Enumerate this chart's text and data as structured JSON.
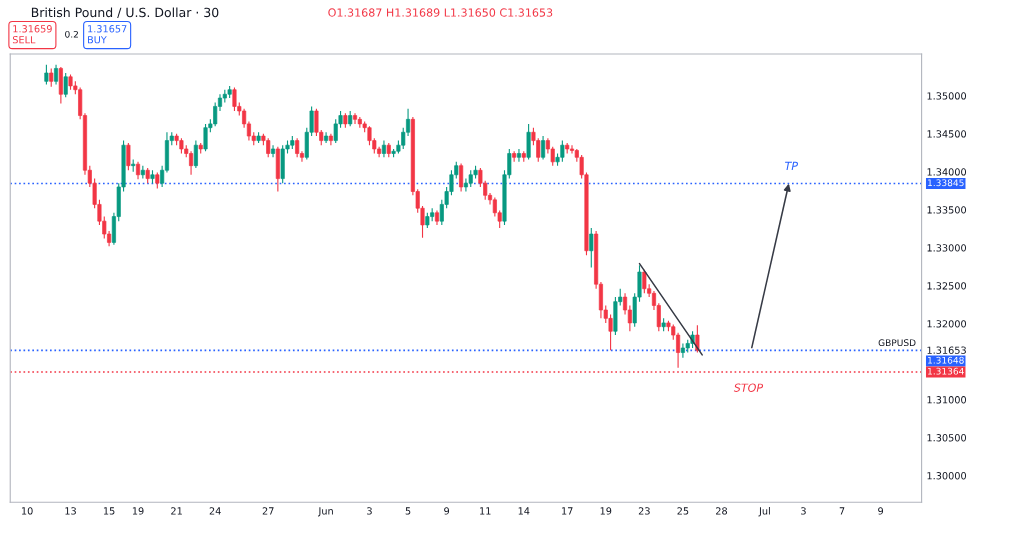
{
  "chart_data": {
    "type": "candlestick",
    "title": "British Pound / U.S. Dollar · 30",
    "subtitle": "O1.31687 H1.31689 L1.31650 C1.31653",
    "annotations": [
      "1.31659",
      "SELL",
      "0.2",
      "1.31657",
      "BUY",
      {
        "text": "TP",
        "y": 1.33845
      },
      {
        "text": "STOP",
        "y": 1.31364
      },
      "GBPUSD"
    ],
    "categories": [
      null,
      null,
      null,
      "10",
      null,
      null,
      null,
      null,
      null,
      null,
      null,
      null,
      "13",
      null,
      null,
      null,
      null,
      null,
      null,
      null,
      "15",
      null,
      null,
      null,
      null,
      null,
      "19",
      null,
      null,
      null,
      null,
      null,
      null,
      null,
      "21",
      null,
      null,
      null,
      null,
      null,
      null,
      null,
      "24",
      null,
      null,
      null,
      null,
      null,
      null,
      null,
      null,
      null,
      null,
      "27",
      null,
      null,
      null,
      null,
      null,
      null,
      null,
      null,
      null,
      null,
      null,
      "Jun",
      null,
      null,
      null,
      null,
      null,
      null,
      null,
      null,
      "3",
      null,
      null,
      null,
      null,
      null,
      null,
      null,
      "5",
      null,
      null,
      null,
      null,
      null,
      null,
      null,
      "9",
      null,
      null,
      null,
      null,
      null,
      null,
      null,
      "11",
      null,
      null,
      null,
      null,
      null,
      null,
      null,
      "14",
      null,
      null,
      null,
      null,
      null,
      null,
      null,
      null,
      "17",
      null,
      null,
      null,
      null,
      null,
      null,
      null,
      "19",
      null,
      null,
      null,
      null,
      null,
      null,
      null,
      "23",
      null,
      null,
      null,
      null,
      null,
      null,
      null,
      "25",
      null,
      null,
      null,
      null,
      null,
      null,
      null,
      "28",
      null,
      null,
      null,
      null,
      null,
      null,
      null,
      null,
      "Jul",
      null,
      null,
      null,
      null,
      null,
      null,
      null,
      "3",
      null,
      null,
      null,
      null,
      null,
      null,
      null,
      "7",
      null,
      null,
      null,
      null,
      null,
      null,
      null,
      "9",
      null,
      null,
      null,
      null,
      null,
      null,
      null,
      null
    ],
    "ohlc": [
      null,
      null,
      null,
      null,
      null,
      null,
      null,
      [
        1.3519,
        1.3541,
        1.3515,
        1.353
      ],
      [
        1.353,
        1.3536,
        1.3512,
        1.3519
      ],
      [
        1.3519,
        1.3541,
        1.3515,
        1.3536
      ],
      [
        1.3536,
        1.3538,
        1.349,
        1.3502
      ],
      [
        1.3502,
        1.353,
        1.3498,
        1.3525
      ],
      [
        1.3525,
        1.3528,
        1.3508,
        1.3513
      ],
      [
        1.3513,
        1.3519,
        1.3502,
        1.3508
      ],
      [
        1.3508,
        1.3511,
        1.3469,
        1.3474
      ],
      [
        1.3474,
        1.3477,
        1.3396,
        1.3402
      ],
      [
        1.3402,
        1.3408,
        1.338,
        1.3385
      ],
      [
        1.3385,
        1.3391,
        1.3352,
        1.3357
      ],
      [
        1.3357,
        1.3363,
        1.333,
        1.3335
      ],
      [
        1.3335,
        1.3341,
        1.3312,
        1.3318
      ],
      [
        1.3318,
        1.3322,
        1.3302,
        1.3307
      ],
      [
        1.3307,
        1.3346,
        1.3304,
        1.3341
      ],
      [
        1.3341,
        1.3385,
        1.3335,
        1.338
      ],
      [
        1.338,
        1.3441,
        1.3374,
        1.3435
      ],
      [
        1.3435,
        1.3438,
        1.3402,
        1.3408
      ],
      [
        1.3408,
        1.3416,
        1.34,
        1.341
      ],
      [
        1.341,
        1.3413,
        1.339,
        1.3396
      ],
      [
        1.3396,
        1.3408,
        1.3391,
        1.3402
      ],
      [
        1.3402,
        1.3405,
        1.3385,
        1.3391
      ],
      [
        1.3391,
        1.3402,
        1.3385,
        1.3396
      ],
      [
        1.3396,
        1.3399,
        1.3378,
        1.3385
      ],
      [
        1.3385,
        1.3408,
        1.338,
        1.3402
      ],
      [
        1.3402,
        1.3452,
        1.3399,
        1.3441
      ],
      [
        1.3441,
        1.3452,
        1.3435,
        1.3447
      ],
      [
        1.3447,
        1.345,
        1.3435,
        1.3441
      ],
      [
        1.3441,
        1.3444,
        1.3424,
        1.343
      ],
      [
        1.343,
        1.3435,
        1.3419,
        1.3424
      ],
      [
        1.3424,
        1.3427,
        1.3396,
        1.3408
      ],
      [
        1.3408,
        1.3441,
        1.3405,
        1.3435
      ],
      [
        1.3435,
        1.3438,
        1.3424,
        1.343
      ],
      [
        1.343,
        1.3463,
        1.3427,
        1.3458
      ],
      [
        1.3458,
        1.3469,
        1.3452,
        1.3463
      ],
      [
        1.3463,
        1.3491,
        1.346,
        1.3486
      ],
      [
        1.3486,
        1.3502,
        1.348,
        1.3497
      ],
      [
        1.3497,
        1.3508,
        1.3491,
        1.3502
      ],
      [
        1.3502,
        1.3513,
        1.3497,
        1.3508
      ],
      [
        1.3508,
        1.3511,
        1.348,
        1.3486
      ],
      [
        1.3486,
        1.3491,
        1.3474,
        1.348
      ],
      [
        1.348,
        1.3483,
        1.3458,
        1.3463
      ],
      [
        1.3463,
        1.3466,
        1.3441,
        1.3447
      ],
      [
        1.3447,
        1.3452,
        1.3435,
        1.3441
      ],
      [
        1.3441,
        1.3452,
        1.3438,
        1.3447
      ],
      [
        1.3447,
        1.345,
        1.3435,
        1.3441
      ],
      [
        1.3441,
        1.3444,
        1.3419,
        1.3424
      ],
      [
        1.3424,
        1.3435,
        1.3419,
        1.343
      ],
      [
        1.343,
        1.3433,
        1.3374,
        1.3391
      ],
      [
        1.3391,
        1.3435,
        1.3385,
        1.343
      ],
      [
        1.343,
        1.3441,
        1.3424,
        1.3435
      ],
      [
        1.3435,
        1.3447,
        1.343,
        1.3441
      ],
      [
        1.3441,
        1.3444,
        1.3419,
        1.3424
      ],
      [
        1.3424,
        1.3427,
        1.3413,
        1.3419
      ],
      [
        1.3419,
        1.3458,
        1.3416,
        1.3452
      ],
      [
        1.3452,
        1.3486,
        1.3447,
        1.348
      ],
      [
        1.348,
        1.3483,
        1.3447,
        1.3452
      ],
      [
        1.3452,
        1.3455,
        1.3435,
        1.3441
      ],
      [
        1.3441,
        1.3452,
        1.3438,
        1.3447
      ],
      [
        1.3447,
        1.345,
        1.3435,
        1.3441
      ],
      [
        1.3441,
        1.3469,
        1.3438,
        1.3463
      ],
      [
        1.3463,
        1.348,
        1.3458,
        1.3474
      ],
      [
        1.3474,
        1.3477,
        1.3458,
        1.3463
      ],
      [
        1.3463,
        1.348,
        1.346,
        1.3474
      ],
      [
        1.3474,
        1.3477,
        1.3463,
        1.3469
      ],
      [
        1.3469,
        1.3472,
        1.3458,
        1.3463
      ],
      [
        1.3463,
        1.3466,
        1.3452,
        1.3458
      ],
      [
        1.3458,
        1.346,
        1.3435,
        1.3441
      ],
      [
        1.3441,
        1.3444,
        1.3424,
        1.343
      ],
      [
        1.343,
        1.3433,
        1.3419,
        1.3424
      ],
      [
        1.3424,
        1.3441,
        1.3419,
        1.3435
      ],
      [
        1.3435,
        1.3438,
        1.3419,
        1.3424
      ],
      [
        1.3424,
        1.343,
        1.3419,
        1.3427
      ],
      [
        1.3427,
        1.3441,
        1.3424,
        1.3435
      ],
      [
        1.3435,
        1.3458,
        1.343,
        1.3452
      ],
      [
        1.3452,
        1.3483,
        1.3447,
        1.3469
      ],
      [
        1.3469,
        1.3472,
        1.3369,
        1.3374
      ],
      [
        1.3374,
        1.3377,
        1.3346,
        1.3352
      ],
      [
        1.3352,
        1.3355,
        1.3313,
        1.333
      ],
      [
        1.333,
        1.3346,
        1.3326,
        1.3341
      ],
      [
        1.3341,
        1.3352,
        1.3335,
        1.3346
      ],
      [
        1.3346,
        1.3349,
        1.333,
        1.3335
      ],
      [
        1.3335,
        1.3363,
        1.333,
        1.3357
      ],
      [
        1.3357,
        1.338,
        1.3352,
        1.3374
      ],
      [
        1.3374,
        1.3402,
        1.3369,
        1.3396
      ],
      [
        1.3396,
        1.3413,
        1.3391,
        1.3408
      ],
      [
        1.3408,
        1.3411,
        1.3374,
        1.338
      ],
      [
        1.338,
        1.3391,
        1.3374,
        1.3385
      ],
      [
        1.3385,
        1.3402,
        1.338,
        1.3396
      ],
      [
        1.3396,
        1.3408,
        1.3391,
        1.3402
      ],
      [
        1.3402,
        1.3405,
        1.338,
        1.3385
      ],
      [
        1.3385,
        1.3388,
        1.3363,
        1.3369
      ],
      [
        1.3369,
        1.3372,
        1.3357,
        1.3363
      ],
      [
        1.3363,
        1.3366,
        1.3341,
        1.3346
      ],
      [
        1.3346,
        1.3349,
        1.3326,
        1.3335
      ],
      [
        1.3335,
        1.3402,
        1.333,
        1.3396
      ],
      [
        1.3396,
        1.343,
        1.3391,
        1.3424
      ],
      [
        1.3424,
        1.3427,
        1.3413,
        1.3419
      ],
      [
        1.3419,
        1.343,
        1.3413,
        1.3424
      ],
      [
        1.3424,
        1.3427,
        1.3413,
        1.3419
      ],
      [
        1.3419,
        1.3463,
        1.3416,
        1.3452
      ],
      [
        1.3452,
        1.3458,
        1.3435,
        1.3441
      ],
      [
        1.3441,
        1.3444,
        1.3413,
        1.3419
      ],
      [
        1.3419,
        1.3447,
        1.3416,
        1.3441
      ],
      [
        1.3441,
        1.3444,
        1.3424,
        1.343
      ],
      [
        1.343,
        1.3433,
        1.3408,
        1.3413
      ],
      [
        1.3413,
        1.3424,
        1.3408,
        1.3419
      ],
      [
        1.3419,
        1.3441,
        1.3413,
        1.3435
      ],
      [
        1.3435,
        1.3438,
        1.3424,
        1.343
      ],
      [
        1.343,
        1.3435,
        1.3424,
        1.3428
      ],
      [
        1.3428,
        1.343,
        1.3413,
        1.3419
      ],
      [
        1.3419,
        1.3422,
        1.3391,
        1.3396
      ],
      [
        1.3396,
        1.3399,
        1.329,
        1.3296
      ],
      [
        1.3296,
        1.3326,
        1.3274,
        1.3318
      ],
      [
        1.3318,
        1.3322,
        1.3246,
        1.3252
      ],
      [
        1.3252,
        1.3255,
        1.3207,
        1.3218
      ],
      [
        1.3218,
        1.3224,
        1.3201,
        1.3207
      ],
      [
        1.3207,
        1.3212,
        1.3165,
        1.319
      ],
      [
        1.319,
        1.3235,
        1.3185,
        1.3229
      ],
      [
        1.3229,
        1.3246,
        1.3224,
        1.3235
      ],
      [
        1.3235,
        1.324,
        1.3212,
        1.3218
      ],
      [
        1.3218,
        1.3224,
        1.319,
        1.3201
      ],
      [
        1.3201,
        1.324,
        1.3196,
        1.3235
      ],
      [
        1.3235,
        1.3277,
        1.3229,
        1.3268
      ],
      [
        1.3268,
        1.3271,
        1.324,
        1.3246
      ],
      [
        1.3246,
        1.3252,
        1.3235,
        1.324
      ],
      [
        1.324,
        1.3243,
        1.3218,
        1.3224
      ],
      [
        1.3224,
        1.3227,
        1.319,
        1.3196
      ],
      [
        1.3196,
        1.3207,
        1.319,
        1.3201
      ],
      [
        1.3201,
        1.3204,
        1.319,
        1.3196
      ],
      [
        1.3196,
        1.3199,
        1.3179,
        1.3185
      ],
      [
        1.3185,
        1.3188,
        1.3142,
        1.3162
      ],
      [
        1.3162,
        1.3174,
        1.3155,
        1.3168
      ],
      [
        1.3168,
        1.3179,
        1.3162,
        1.3174
      ],
      [
        1.3174,
        1.319,
        1.3168,
        1.3185
      ],
      [
        1.3185,
        1.3198,
        1.3162,
        1.3165
      ],
      null,
      null,
      null,
      null,
      null,
      null,
      null,
      null,
      null,
      null,
      null,
      null,
      null,
      null,
      null,
      null,
      null,
      null,
      null,
      null,
      null,
      null,
      null,
      null,
      null,
      null,
      null,
      null,
      null,
      null,
      null,
      null,
      null,
      null,
      null,
      null,
      null,
      null,
      null,
      null,
      null,
      null,
      null,
      null,
      null,
      null
    ],
    "colors": [
      null,
      null,
      null,
      null,
      null,
      null,
      null,
      "#089981",
      "#f23645",
      "#089981",
      "#f23645",
      "#089981",
      "#f23645",
      "#f23645",
      "#f23645",
      "#f23645",
      "#f23645",
      "#f23645",
      "#f23645",
      "#f23645",
      "#f23645",
      "#089981",
      "#089981",
      "#089981",
      "#f23645",
      "#089981",
      "#f23645",
      "#089981",
      "#f23645",
      "#089981",
      "#f23645",
      "#089981",
      "#089981",
      "#089981",
      "#f23645",
      "#f23645",
      "#f23645",
      "#f23645",
      "#089981",
      "#f23645",
      "#089981",
      "#089981",
      "#089981",
      "#089981",
      "#089981",
      "#089981",
      "#f23645",
      "#f23645",
      "#f23645",
      "#f23645",
      "#f23645",
      "#089981",
      "#f23645",
      "#f23645",
      "#089981",
      "#f23645",
      "#089981",
      "#089981",
      "#089981",
      "#f23645",
      "#f23645",
      "#089981",
      "#089981",
      "#f23645",
      "#f23645",
      "#089981",
      "#f23645",
      "#089981",
      "#089981",
      "#f23645",
      "#089981",
      "#f23645",
      "#f23645",
      "#f23645",
      "#f23645",
      "#f23645",
      "#f23645",
      "#089981",
      "#f23645",
      "#089981",
      "#089981",
      "#089981",
      "#089981",
      "#f23645",
      "#f23645",
      "#f23645",
      "#089981",
      "#089981",
      "#f23645",
      "#089981",
      "#089981",
      "#089981",
      "#089981",
      "#f23645",
      "#089981",
      "#089981",
      "#089981",
      "#f23645",
      "#f23645",
      "#f23645",
      "#f23645",
      "#f23645",
      "#089981",
      "#089981",
      "#f23645",
      "#089981",
      "#f23645",
      "#089981",
      "#f23645",
      "#f23645",
      "#089981",
      "#f23645",
      "#f23645",
      "#089981",
      "#089981",
      "#f23645",
      "#f23645",
      "#f23645",
      "#f23645",
      "#f23645",
      "#089981",
      "#f23645",
      "#f23645",
      "#f23645",
      "#f23645",
      "#089981",
      "#089981",
      "#f23645",
      "#f23645",
      "#089981",
      "#089981",
      "#f23645",
      "#f23645",
      "#f23645",
      "#f23645",
      "#089981",
      "#f23645",
      "#f23645",
      "#f23645",
      "#089981",
      "#089981",
      "#089981",
      "#f23645",
      null,
      null,
      null,
      null,
      null,
      null,
      null,
      null,
      null,
      null,
      null,
      null,
      null,
      null,
      null,
      null,
      null,
      null,
      null,
      null,
      null,
      null,
      null,
      null,
      null,
      null,
      null,
      null,
      null,
      null,
      null,
      null,
      null,
      null,
      null,
      null,
      null,
      null,
      null,
      null,
      null,
      null,
      null,
      null,
      null,
      null
    ],
    "series": [
      {
        "type": "line",
        "color": "#363a45",
        "values": [
          null,
          null,
          null,
          null,
          null,
          null,
          null,
          null,
          null,
          null,
          null,
          null,
          null,
          null,
          null,
          null,
          null,
          null,
          null,
          null,
          null,
          null,
          null,
          null,
          null,
          null,
          null,
          null,
          null,
          null,
          null,
          null,
          null,
          null,
          null,
          null,
          null,
          null,
          null,
          null,
          null,
          null,
          null,
          null,
          null,
          null,
          null,
          null,
          null,
          null,
          null,
          null,
          null,
          null,
          null,
          null,
          null,
          null,
          null,
          null,
          null,
          null,
          null,
          null,
          null,
          null,
          null,
          null,
          null,
          null,
          null,
          null,
          null,
          null,
          null,
          null,
          null,
          null,
          null,
          null,
          null,
          null,
          null,
          null,
          null,
          null,
          null,
          null,
          null,
          null,
          null,
          null,
          null,
          null,
          null,
          null,
          null,
          null,
          null,
          null,
          null,
          null,
          null,
          null,
          null,
          null,
          null,
          null,
          null,
          null,
          null,
          null,
          null,
          null,
          null,
          null,
          null,
          null,
          null,
          null,
          null,
          null,
          null,
          null,
          null,
          null,
          null,
          null,
          null,
          null,
          1.3279,
          null,
          null,
          null,
          null,
          null,
          null,
          null,
          null,
          null,
          null,
          null,
          null,
          1.3159,
          null,
          null,
          null,
          null,
          null,
          null,
          null,
          null,
          null,
          null,
          null,
          null,
          null,
          null,
          null,
          null,
          null,
          null,
          null,
          null,
          null,
          null,
          null,
          null,
          null,
          null,
          null,
          null,
          null,
          null,
          null,
          null,
          null,
          null,
          null,
          null,
          null,
          null,
          null,
          null,
          null,
          null,
          null,
          null,
          null
        ]
      }
    ],
    "ref_lines": [
      {
        "axis": "y",
        "value": 1.33845,
        "label": "1.33845",
        "color": "#2962ff",
        "line_style": "dotted"
      },
      {
        "axis": "y",
        "value": 1.31648,
        "label": "1.31648",
        "color": "#2962ff",
        "line_style": "dotted"
      },
      {
        "axis": "y",
        "value": 1.31364,
        "label": "1.31364",
        "color": "#f23645",
        "line_style": "dotted"
      }
    ],
    "ylim": [
      1.2965,
      1.3555
    ],
    "yticks": [
      {
        "value": 1.3,
        "label": "1.30000"
      },
      {
        "value": 1.305,
        "label": "1.30500"
      },
      {
        "value": 1.31,
        "label": "1.31000"
      },
      {
        "value": 1.31653,
        "label": "1.31653"
      },
      {
        "value": 1.32,
        "label": "1.32000"
      },
      {
        "value": 1.325,
        "label": "1.32500"
      },
      {
        "value": 1.33,
        "label": "1.33000"
      },
      {
        "value": 1.335,
        "label": "1.33500"
      },
      {
        "value": 1.34,
        "label": "1.34000"
      },
      {
        "value": 1.345,
        "label": "1.34500"
      },
      {
        "value": 1.35,
        "label": "1.35000"
      }
    ],
    "grid": false,
    "legend": false
  }
}
